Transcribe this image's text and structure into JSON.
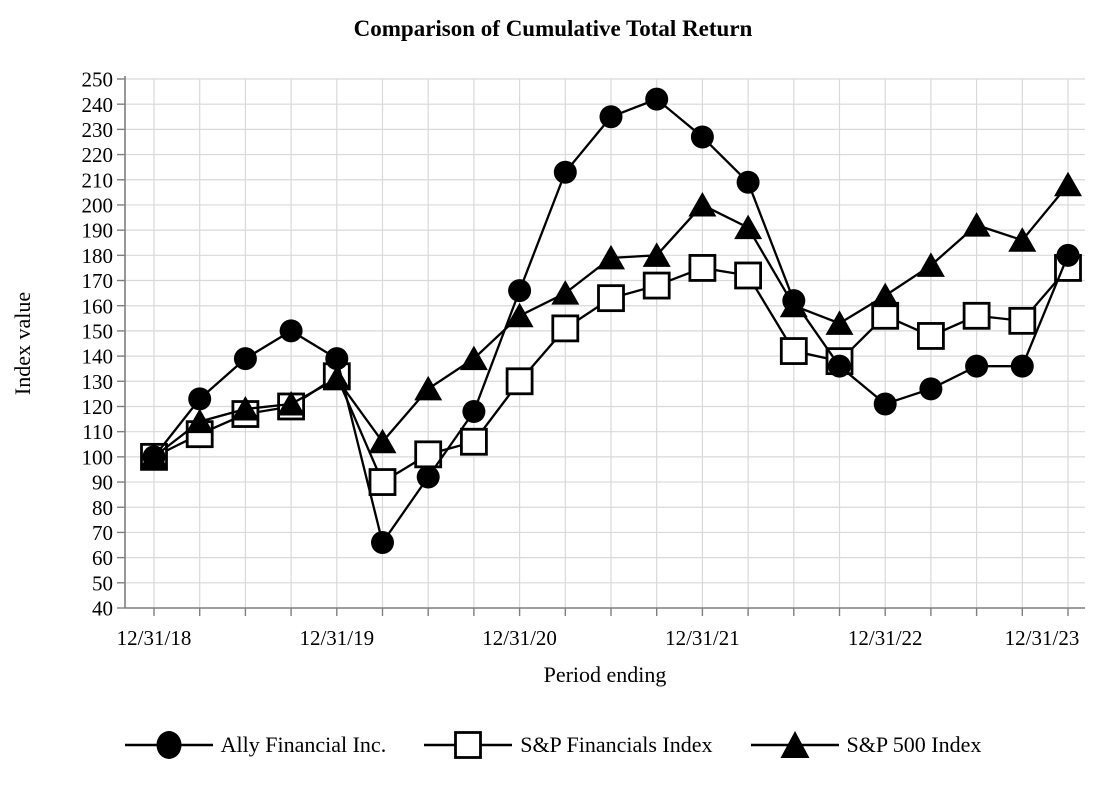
{
  "chart_data": {
    "type": "line",
    "title": "Comparison of Cumulative Total Return",
    "xlabel": "Period ending",
    "ylabel": "Index value",
    "ylim": [
      40,
      250
    ],
    "y_tick_step": 10,
    "y_tick_labels": [
      "250",
      "240",
      "230",
      "220",
      "210",
      "200",
      "190",
      "180",
      "170",
      "160",
      "150",
      "140",
      "130",
      "120",
      "110",
      "100",
      "90",
      "80",
      "70",
      "60",
      "50",
      "40"
    ],
    "x_tick_labels": [
      "12/31/18",
      "12/31/19",
      "12/31/20",
      "12/31/21",
      "12/31/22",
      "12/31/23"
    ],
    "points_per_year_label": 4,
    "num_points": 21,
    "grid": true,
    "legend_position": "bottom",
    "colors": {
      "series": "#000000",
      "gridline": "#d9d9d9",
      "axis": "#7f7f7f",
      "background": "#ffffff"
    },
    "series": [
      {
        "name": "Ally Financial Inc.",
        "marker": "filled-circle",
        "values": [
          100,
          123,
          139,
          150,
          139,
          66,
          92,
          118,
          166,
          213,
          235,
          242,
          227,
          209,
          162,
          136,
          121,
          127,
          136,
          136,
          180
        ]
      },
      {
        "name": "S&P Financials Index",
        "marker": "open-square",
        "values": [
          100,
          109,
          117,
          120,
          132,
          90,
          101,
          106,
          130,
          151,
          163,
          168,
          175,
          172,
          142,
          138,
          156,
          148,
          156,
          154,
          175
        ]
      },
      {
        "name": "S&P 500 Index",
        "marker": "filled-triangle",
        "values": [
          100,
          114,
          119,
          121,
          131,
          106,
          127,
          139,
          156,
          165,
          179,
          180,
          200,
          191,
          160,
          153,
          164,
          176,
          192,
          186,
          208
        ]
      }
    ]
  }
}
